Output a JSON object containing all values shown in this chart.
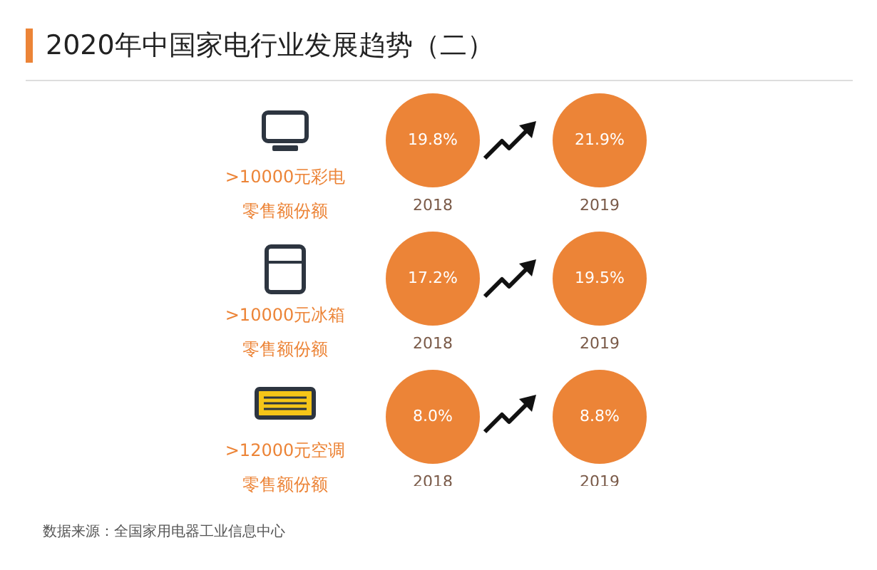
{
  "chart_data": {
    "type": "other",
    "title": "2020年中国家电行业发展趋势（二）",
    "categories": [
      "2018",
      "2019"
    ],
    "series": [
      {
        "name": ">10000元彩电零售额份额",
        "color": "#ec8437",
        "values": [
          19.8,
          21.9
        ],
        "value_labels": [
          "19.8%",
          "21.9%"
        ]
      },
      {
        "name": ">10000元冰箱零售额份额",
        "color": "#ec8437",
        "values": [
          17.2,
          19.5
        ],
        "value_labels": [
          "17.2%",
          "19.5%"
        ]
      },
      {
        "name": ">12000元空调零售额份额",
        "color": "#ec8437",
        "values": [
          8.0,
          8.8
        ],
        "value_labels": [
          "8.0%",
          "8.8%"
        ]
      }
    ],
    "annotations": [
      "数据来源：全国家用电器工业信息中心"
    ],
    "legend": false
  }
}
